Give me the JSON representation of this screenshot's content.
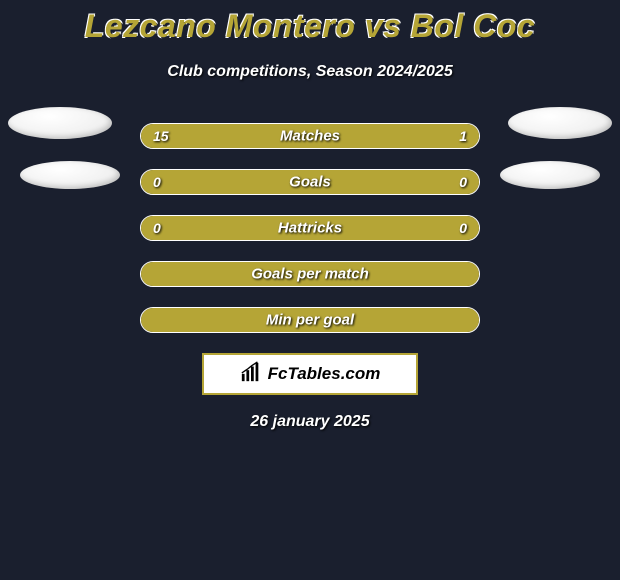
{
  "title": "Lezcano Montero vs Bol Coc",
  "subtitle": "Club competitions, Season 2024/2025",
  "date": "26 january 2025",
  "badge": {
    "text": "FcTables.com"
  },
  "colors": {
    "background": "#1a1f2e",
    "accent": "#b5a536",
    "text": "#ffffff",
    "badge_bg": "#ffffff",
    "badge_text": "#000000"
  },
  "stats": [
    {
      "label": "Matches",
      "left_value": "15",
      "right_value": "1",
      "left_pct": 80,
      "right_pct": 20,
      "show_values": true
    },
    {
      "label": "Goals",
      "left_value": "0",
      "right_value": "0",
      "left_pct": 50,
      "right_pct": 50,
      "show_values": true
    },
    {
      "label": "Hattricks",
      "left_value": "0",
      "right_value": "0",
      "left_pct": 50,
      "right_pct": 50,
      "show_values": true
    },
    {
      "label": "Goals per match",
      "left_value": "",
      "right_value": "",
      "left_pct": 100,
      "right_pct": 0,
      "show_values": false
    },
    {
      "label": "Min per goal",
      "left_value": "",
      "right_value": "",
      "left_pct": 100,
      "right_pct": 0,
      "show_values": false
    }
  ]
}
